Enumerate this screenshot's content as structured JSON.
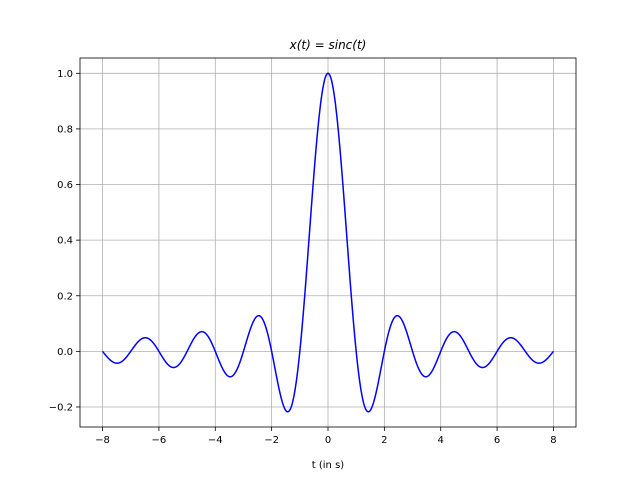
{
  "chart_data": {
    "type": "line",
    "title": "x(t) = sinc(t)",
    "xlabel": "t (in s)",
    "ylabel": "",
    "xlim": [
      -8.8,
      8.8
    ],
    "ylim": [
      -0.272,
      1.055
    ],
    "xticks": [
      -8,
      -6,
      -4,
      -2,
      0,
      2,
      4,
      6,
      8
    ],
    "xtick_labels": [
      "−8",
      "−6",
      "−4",
      "−2",
      "0",
      "2",
      "4",
      "6",
      "8"
    ],
    "yticks": [
      -0.2,
      0.0,
      0.2,
      0.4,
      0.6,
      0.8,
      1.0
    ],
    "ytick_labels": [
      "−0.2",
      "0.0",
      "0.2",
      "0.4",
      "0.6",
      "0.8",
      "1.0"
    ],
    "grid": true,
    "series": [
      {
        "function": "sin(pi*t)/(pi*t)",
        "x_range": [
          -8,
          8
        ],
        "color": "#0000ff"
      }
    ]
  }
}
